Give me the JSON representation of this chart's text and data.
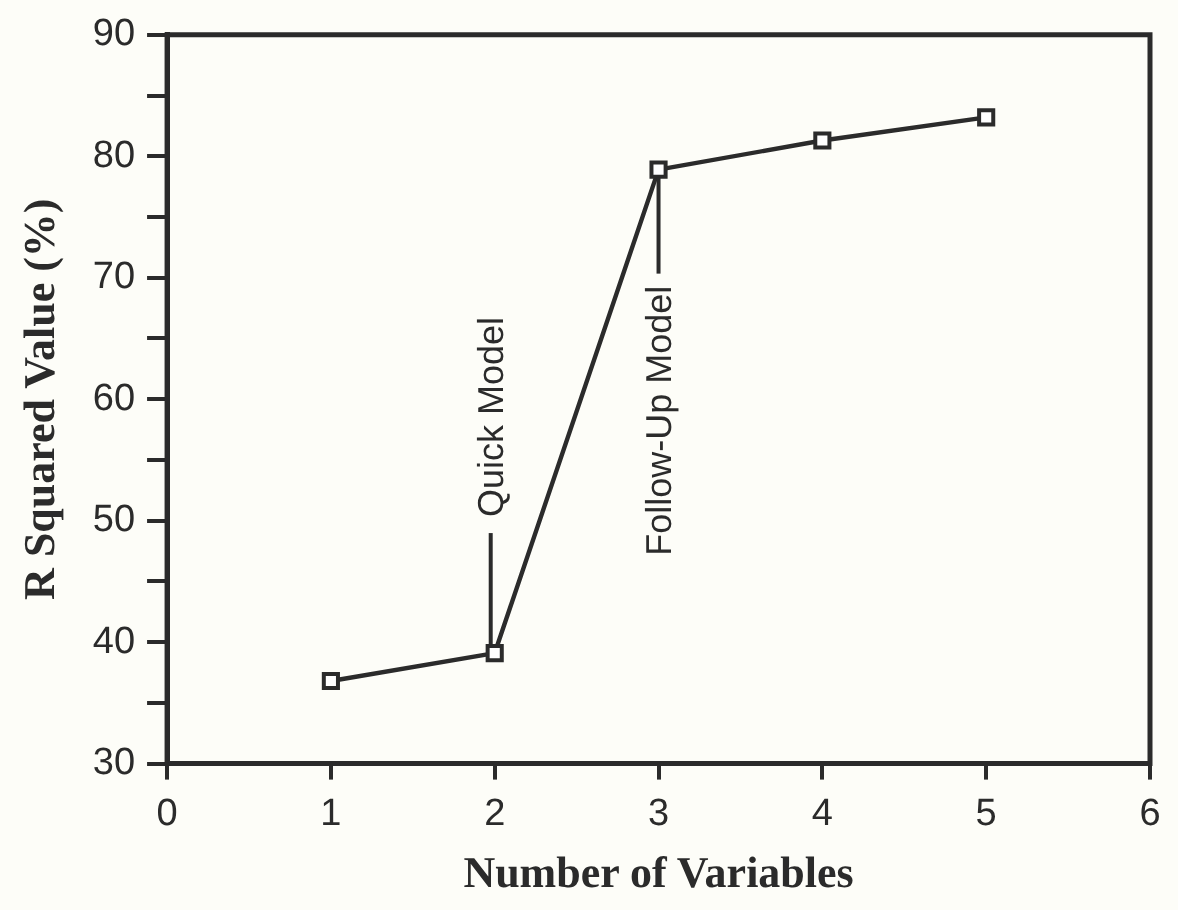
{
  "chart_data": {
    "type": "line",
    "xlabel": "Number of Variables",
    "ylabel": "R Squared Value (%)",
    "x": [
      1,
      2,
      3,
      4,
      5
    ],
    "series": [
      {
        "color": "#2b2b2b",
        "values": [
          36.8,
          39.1,
          78.9,
          81.3,
          83.2
        ]
      }
    ],
    "xlim": [
      0,
      6
    ],
    "xticks": [
      0,
      1,
      2,
      3,
      4,
      5,
      6
    ],
    "ylim": [
      30,
      90
    ],
    "yticks": [
      30,
      40,
      50,
      60,
      70,
      80,
      90
    ],
    "annotations": [
      {
        "text": "Quick Model",
        "x": 2,
        "y": 39.1
      },
      {
        "text": "Follow-Up Model",
        "x": 3,
        "y": 78.9
      }
    ],
    "grid": false,
    "legend": false,
    "marker": "square",
    "line_style": "solid"
  }
}
